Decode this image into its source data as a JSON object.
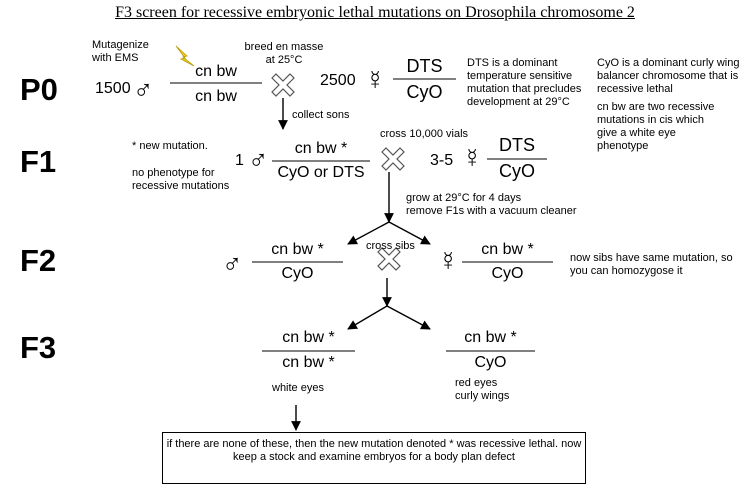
{
  "title": "F3 screen for recessive embryonic lethal mutations on Drosophila chromosome 2",
  "generations": {
    "p0": "P0",
    "f1": "F1",
    "f2": "F2",
    "f3": "F3"
  },
  "icons": {
    "lightning": "lightning-icon",
    "cross": "cross-icon",
    "male": "♂",
    "female": "☿"
  },
  "colors": {
    "lightning": "#f2d21c",
    "lightning_stroke": "#b89a00"
  },
  "p0": {
    "mutagenize_line1": "Mutagenize",
    "mutagenize_line2": "with EMS",
    "breed_line1": "breed en masse",
    "breed_line2": "at 25°C",
    "male_count": "1500",
    "male_top": "cn bw",
    "male_bottom": "cn bw",
    "female_count": "2500",
    "female_top": "DTS",
    "female_bottom": "CyO",
    "note_dts": "DTS is a dominant temperature sensitive mutation that precludes development at 29°C",
    "note_cyo": "CyO is a dominant curly wing balancer chromosome that is recessive lethal",
    "note_cnbw": "cn bw are two recessive mutations in cis which give a white eye phenotype",
    "collect_label": "collect sons"
  },
  "f1": {
    "note_new": "* new mutation.",
    "note_pheno": "no phenotype for recessive mutations",
    "male_count": "1",
    "male_top": "cn bw *",
    "male_bottom": "CyO or DTS",
    "cross_label": "cross 10,000 vials",
    "female_count": "3-5",
    "female_top": "DTS",
    "female_bottom": "CyO",
    "grow_line1": "grow at 29°C for 4 days",
    "grow_line2": "remove F1s with a vacuum cleaner"
  },
  "f2": {
    "male_top": "cn bw *",
    "male_bottom": "CyO",
    "cross_label": "cross sibs",
    "female_top": "cn bw *",
    "female_bottom": "CyO",
    "note": "now sibs have same mutation, so you can homozygose it"
  },
  "f3": {
    "left_top": "cn bw *",
    "left_bottom": "cn bw *",
    "left_pheno": "white eyes",
    "right_top": "cn bw *",
    "right_bottom": "CyO",
    "right_pheno1": "red eyes",
    "right_pheno2": "curly wings",
    "box_text": "if there are none of these, then the new mutation denoted * was recessive lethal. now keep a stock and examine embryos for a body plan defect"
  }
}
